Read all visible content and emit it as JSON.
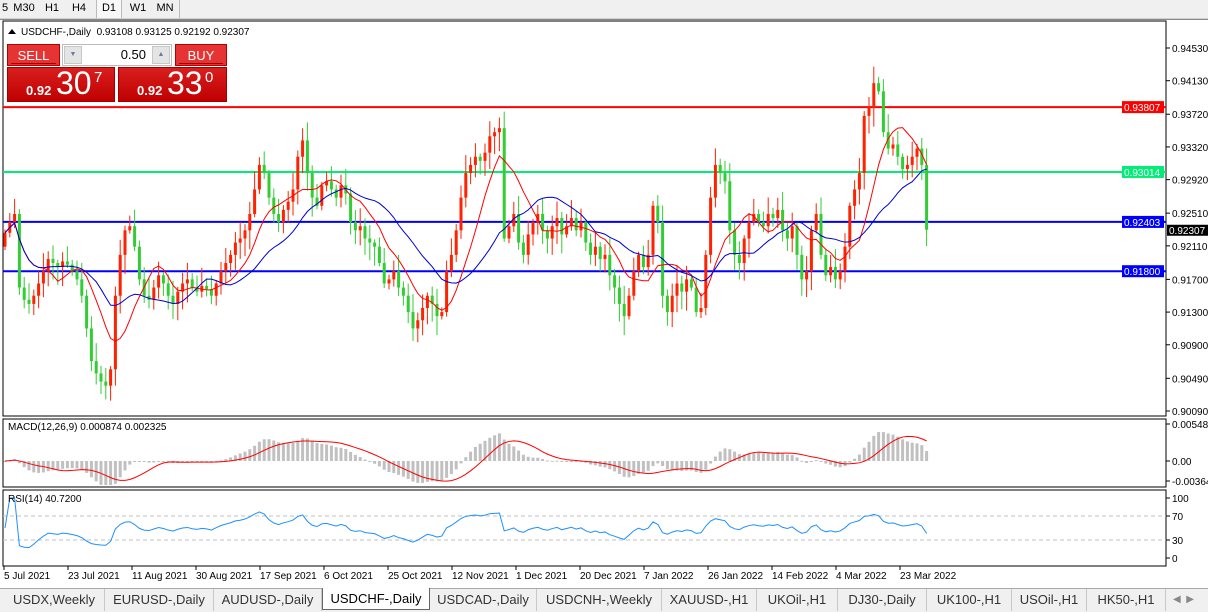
{
  "toolbar": {
    "periods": [
      {
        "label": "5",
        "active": false
      },
      {
        "label": "M30",
        "active": false
      },
      {
        "label": "H1",
        "active": false
      },
      {
        "label": "H4",
        "active": false
      },
      {
        "label": "D1",
        "active": true
      },
      {
        "label": "W1",
        "active": false
      },
      {
        "label": "MN",
        "active": false
      }
    ]
  },
  "chart": {
    "symbol_title": "USDCHF-,Daily",
    "ohlc": "0.93108 0.93125 0.92192 0.92307",
    "icon": "triangle-up-icon"
  },
  "trade_panel": {
    "sell_label": "SELL",
    "buy_label": "BUY",
    "lot_value": "0.50",
    "sell_price": {
      "prefix": "0.92",
      "big": "30",
      "sup": "7"
    },
    "buy_price": {
      "prefix": "0.92",
      "big": "33",
      "sup": "0"
    },
    "color": "#e63434"
  },
  "chart_data": {
    "type": "candlestick",
    "symbol": "USDCHF-",
    "timeframe": "Daily",
    "ylim": [
      0.9001,
      0.9478
    ],
    "up_color": "#ff2200",
    "down_color": "#32cd32",
    "y_ticks": [
      "0.94530",
      "0.94130",
      "0.93720",
      "0.93320",
      "0.92920",
      "0.92510",
      "0.92110",
      "0.91700",
      "0.91300",
      "0.90900",
      "0.90490",
      "0.90090"
    ],
    "x_ticks": [
      "5 Jul 2021",
      "23 Jul 2021",
      "11 Aug 2021",
      "30 Aug 2021",
      "17 Sep 2021",
      "6 Oct 2021",
      "25 Oct 2021",
      "12 Nov 2021",
      "1 Dec 2021",
      "20 Dec 2021",
      "7 Jan 2022",
      "26 Jan 2022",
      "14 Feb 2022",
      "4 Mar 2022",
      "23 Mar 2022"
    ],
    "first_open": 0.921,
    "closes": [
      0.9227,
      0.924,
      0.925,
      0.916,
      0.9145,
      0.914,
      0.915,
      0.9165,
      0.918,
      0.9195,
      0.919,
      0.9185,
      0.9192,
      0.9188,
      0.918,
      0.917,
      0.915,
      0.911,
      0.907,
      0.9055,
      0.9045,
      0.904,
      0.906,
      0.915,
      0.92,
      0.923,
      0.9235,
      0.921,
      0.917,
      0.915,
      0.9145,
      0.916,
      0.9175,
      0.9165,
      0.915,
      0.914,
      0.9155,
      0.9165,
      0.917,
      0.916,
      0.9155,
      0.9162,
      0.9158,
      0.915,
      0.9165,
      0.918,
      0.919,
      0.92,
      0.9215,
      0.922,
      0.923,
      0.925,
      0.928,
      0.931,
      0.93,
      0.927,
      0.925,
      0.924,
      0.9255,
      0.9265,
      0.928,
      0.932,
      0.934,
      0.93,
      0.927,
      0.926,
      0.9285,
      0.929,
      0.928,
      0.927,
      0.9285,
      0.9275,
      0.924,
      0.923,
      0.9235,
      0.922,
      0.9215,
      0.921,
      0.919,
      0.9165,
      0.917,
      0.918,
      0.916,
      0.915,
      0.913,
      0.911,
      0.912,
      0.9135,
      0.915,
      0.914,
      0.9125,
      0.913,
      0.918,
      0.92,
      0.923,
      0.927,
      0.93,
      0.931,
      0.932,
      0.9315,
      0.9325,
      0.9345,
      0.935,
      0.9355,
      0.922,
      0.9235,
      0.925,
      0.9215,
      0.92,
      0.9225,
      0.924,
      0.925,
      0.923,
      0.922,
      0.9235,
      0.9245,
      0.9225,
      0.9235,
      0.9245,
      0.923,
      0.924,
      0.9215,
      0.92,
      0.921,
      0.9195,
      0.92,
      0.9175,
      0.916,
      0.914,
      0.9125,
      0.915,
      0.918,
      0.92,
      0.9185,
      0.92,
      0.926,
      0.924,
      0.915,
      0.913,
      0.915,
      0.9165,
      0.9155,
      0.917,
      0.916,
      0.913,
      0.9135,
      0.92,
      0.927,
      0.931,
      0.93,
      0.929,
      0.923,
      0.92,
      0.919,
      0.922,
      0.924,
      0.925,
      0.924,
      0.9235,
      0.925,
      0.9245,
      0.9255,
      0.923,
      0.922,
      0.9235,
      0.92,
      0.917,
      0.918,
      0.923,
      0.925,
      0.92,
      0.9175,
      0.9185,
      0.917,
      0.918,
      0.921,
      0.926,
      0.928,
      0.93,
      0.937,
      0.938,
      0.941,
      0.94,
      0.935,
      0.933,
      0.9335,
      0.932,
      0.9305,
      0.931,
      0.932,
      0.933,
      0.931,
      0.92307
    ],
    "moving_averages": [
      {
        "color": "#ff0000"
      },
      {
        "color": "#0000cc"
      }
    ],
    "horizontal_lines": [
      {
        "price": 0.93807,
        "label": "0.93807",
        "color": "#ff0000"
      },
      {
        "price": 0.93014,
        "label": "0.93014",
        "color": "#00ee76"
      },
      {
        "price": 0.92403,
        "label": "0.92403",
        "color": "#0000ff"
      },
      {
        "price": 0.918,
        "label": "0.91800",
        "color": "#0000ff"
      }
    ],
    "current_price": {
      "label": "0.92307",
      "color": "#000000"
    },
    "macd": {
      "title": "MACD(12,26,9) 0.000874 0.002325",
      "params": [
        12,
        26,
        9
      ],
      "main": 0.000874,
      "signal": 0.002325,
      "ylim": [
        -0.00364,
        0.005489
      ],
      "y_ticks": [
        "0.005489",
        "0.00",
        "-0.00364"
      ],
      "histogram_color": "#c0c0c0",
      "signal_color": "#ff0000"
    },
    "rsi": {
      "title": "RSI(14) 40.7200",
      "period": 14,
      "value": 40.72,
      "levels": [
        70,
        30
      ],
      "y_ticks": [
        "100",
        "70",
        "30",
        "0"
      ],
      "color": "#1e90ff"
    }
  },
  "tabs": [
    {
      "label": "USDX,Weekly",
      "active": false
    },
    {
      "label": "EURUSD-,Daily",
      "active": false
    },
    {
      "label": "AUDUSD-,Daily",
      "active": false
    },
    {
      "label": "USDCHF-,Daily",
      "active": true
    },
    {
      "label": "USDCAD-,Daily",
      "active": false
    },
    {
      "label": "USDCNH-,Weekly",
      "active": false
    },
    {
      "label": "XAUUSD-,H1",
      "active": false
    },
    {
      "label": "UKOil-,H1",
      "active": false
    },
    {
      "label": "DJ30-,Daily",
      "active": false
    },
    {
      "label": "UK100-,H1",
      "active": false
    },
    {
      "label": "USOil-,H1",
      "active": false
    },
    {
      "label": "HK50-,H1",
      "active": false
    }
  ],
  "tab_scroll": {
    "left_icon": "arrow-left-icon",
    "right_icon": "arrow-right-icon"
  }
}
